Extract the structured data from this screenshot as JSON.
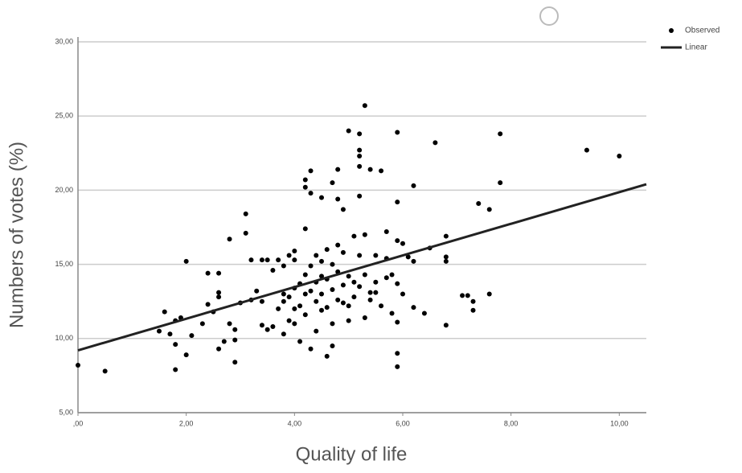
{
  "chart_data": {
    "type": "scatter",
    "x_label": "Quality of life",
    "y_label": "Numbers of votes (%)",
    "xlim": [
      0,
      10.5
    ],
    "ylim": [
      5,
      30
    ],
    "xticks": [
      {
        "value": 0,
        "label": ",00"
      },
      {
        "value": 2,
        "label": "2,00"
      },
      {
        "value": 4,
        "label": "4,00"
      },
      {
        "value": 6,
        "label": "6,00"
      },
      {
        "value": 8,
        "label": "8,00"
      },
      {
        "value": 10,
        "label": "10,00"
      }
    ],
    "yticks": [
      {
        "value": 5,
        "label": "5,00"
      },
      {
        "value": 10,
        "label": "10,00"
      },
      {
        "value": 15,
        "label": "15,00"
      },
      {
        "value": 20,
        "label": "20,00"
      },
      {
        "value": 25,
        "label": "25,00"
      },
      {
        "value": 30,
        "label": "30,00"
      }
    ],
    "grid": true,
    "legend_position": "top-right",
    "series": [
      {
        "name": "Observed",
        "type": "scatter",
        "color": "#000000",
        "x": [
          0,
          0.5,
          1.5,
          1.6,
          1.7,
          1.8,
          1.8,
          1.8,
          1.9,
          2.0,
          2.0,
          2.1,
          2.3,
          2.4,
          2.4,
          2.5,
          2.6,
          2.6,
          2.6,
          2.6,
          2.7,
          2.8,
          2.8,
          2.9,
          2.9,
          2.9,
          3.0,
          3.1,
          3.1,
          3.2,
          3.2,
          3.3,
          3.4,
          3.4,
          3.4,
          3.5,
          3.5,
          3.6,
          3.6,
          3.7,
          3.7,
          3.8,
          3.8,
          3.8,
          3.8,
          3.9,
          3.9,
          3.9,
          4.0,
          4.0,
          4.0,
          4.0,
          4.0,
          4.1,
          4.1,
          4.1,
          4.2,
          4.2,
          4.2,
          4.2,
          4.2,
          4.2,
          4.3,
          4.3,
          4.3,
          4.3,
          4.3,
          4.4,
          4.4,
          4.4,
          4.4,
          4.5,
          4.5,
          4.5,
          4.5,
          4.5,
          4.6,
          4.6,
          4.6,
          4.6,
          4.7,
          4.7,
          4.7,
          4.7,
          4.7,
          4.8,
          4.8,
          4.8,
          4.8,
          4.8,
          4.9,
          4.9,
          4.9,
          4.9,
          5.0,
          5.0,
          5.0,
          5.0,
          5.1,
          5.1,
          5.1,
          5.2,
          5.2,
          5.2,
          5.2,
          5.2,
          5.2,
          5.2,
          5.3,
          5.3,
          5.3,
          5.3,
          5.4,
          5.4,
          5.4,
          5.5,
          5.5,
          5.5,
          5.6,
          5.6,
          5.7,
          5.7,
          5.7,
          5.8,
          5.8,
          5.9,
          5.9,
          5.9,
          5.9,
          5.9,
          5.9,
          5.9,
          6.0,
          6.0,
          6.1,
          6.2,
          6.2,
          6.2,
          6.4,
          6.5,
          6.6,
          6.8,
          6.8,
          6.8,
          6.8,
          7.1,
          7.2,
          7.3,
          7.3,
          7.4,
          7.6,
          7.6,
          7.8,
          7.8,
          9.4,
          10.0
        ],
        "values": [
          8.2,
          7.8,
          10.5,
          11.8,
          10.3,
          11.2,
          9.6,
          7.9,
          11.4,
          8.9,
          15.2,
          10.2,
          11.0,
          12.3,
          14.4,
          11.8,
          14.4,
          13.1,
          12.8,
          9.3,
          9.8,
          11.0,
          16.7,
          10.6,
          8.4,
          9.9,
          12.4,
          18.4,
          17.1,
          12.6,
          15.3,
          13.2,
          15.3,
          12.5,
          10.9,
          15.3,
          10.6,
          10.8,
          14.6,
          15.3,
          12.0,
          10.3,
          13.0,
          14.9,
          12.5,
          15.6,
          12.8,
          11.2,
          15.9,
          15.3,
          12.0,
          13.4,
          11.0,
          13.7,
          12.2,
          9.8,
          14.3,
          13.0,
          11.6,
          17.4,
          20.7,
          20.2,
          9.3,
          14.9,
          13.2,
          19.8,
          21.3,
          15.6,
          13.8,
          12.5,
          10.5,
          15.2,
          14.2,
          13.0,
          11.9,
          19.5,
          16.0,
          14.0,
          12.1,
          8.8,
          15.0,
          13.3,
          11.0,
          9.5,
          20.5,
          16.3,
          14.5,
          12.6,
          19.4,
          21.4,
          15.8,
          13.6,
          12.4,
          18.7,
          24.0,
          14.2,
          12.2,
          11.2,
          16.9,
          13.8,
          12.8,
          23.8,
          22.7,
          22.3,
          21.6,
          19.6,
          15.6,
          13.5,
          25.7,
          17.0,
          14.3,
          11.4,
          21.4,
          13.1,
          12.6,
          15.6,
          13.8,
          13.1,
          21.3,
          12.2,
          17.2,
          15.4,
          14.1,
          14.3,
          11.7,
          23.9,
          19.2,
          16.6,
          13.7,
          11.1,
          9.0,
          8.1,
          16.4,
          13.0,
          15.5,
          20.3,
          15.2,
          12.1,
          11.7,
          16.1,
          23.2,
          16.9,
          15.5,
          15.2,
          10.9,
          12.9,
          12.9,
          12.5,
          11.9,
          19.1,
          18.7,
          13.0,
          23.8,
          20.5,
          22.7,
          22.3
        ]
      },
      {
        "name": "Linear",
        "type": "line",
        "color": "#222222",
        "x": [
          0,
          10.5
        ],
        "values": [
          9.2,
          20.4
        ]
      }
    ]
  }
}
